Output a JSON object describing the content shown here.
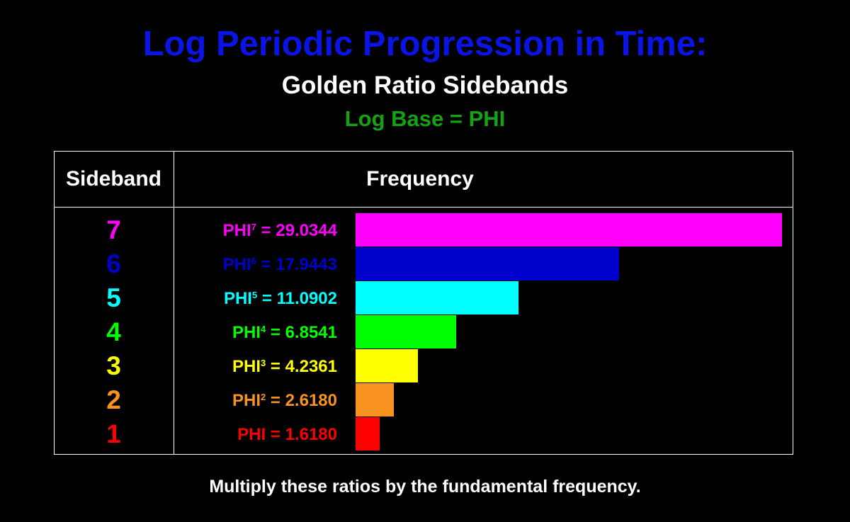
{
  "header": {
    "title": "Log Periodic Progression in Time:",
    "subtitle": "Golden Ratio Sidebands",
    "subsubtitle": "Log Base = PHI"
  },
  "colors": {
    "background": "#000000",
    "title": "#0a14e6",
    "subtitle": "#ffffff",
    "subsubtitle": "#13a313",
    "grid": "#ffffff"
  },
  "table": {
    "col1_header": "Sideband",
    "col2_header": "Frequency"
  },
  "rows": [
    {
      "sideband": "7",
      "base": "PHI",
      "exp": "7",
      "rest": " = 29.0344",
      "color": "#ff00ff"
    },
    {
      "sideband": "6",
      "base": "PHI",
      "exp": "6",
      "rest": " = 17.9443",
      "color": "#0000cc"
    },
    {
      "sideband": "5",
      "base": "PHI",
      "exp": "5",
      "rest": " = 11.0902",
      "color": "#00ffff"
    },
    {
      "sideband": "4",
      "base": "PHI",
      "exp": "4",
      "rest": " = 6.8541",
      "color": "#00ff00"
    },
    {
      "sideband": "3",
      "base": "PHI",
      "exp": "3",
      "rest": " = 4.2361",
      "color": "#ffff00"
    },
    {
      "sideband": "2",
      "base": "PHI",
      "exp": "2",
      "rest": " = 2.6180",
      "color": "#f7931e"
    },
    {
      "sideband": "1",
      "base": "PHI",
      "exp": "",
      "rest": " = 1.6180",
      "color": "#ff0000"
    }
  ],
  "chart_data": {
    "type": "bar",
    "orientation": "horizontal",
    "title": "Log Periodic Progression in Time:",
    "subtitle": "Golden Ratio Sidebands",
    "categories": [
      "7",
      "6",
      "5",
      "4",
      "3",
      "2",
      "1"
    ],
    "values": [
      29.0344,
      17.9443,
      11.0902,
      6.8541,
      4.2361,
      2.618,
      1.618
    ],
    "colors": [
      "#ff00ff",
      "#0000cc",
      "#00ffff",
      "#00ff00",
      "#ffff00",
      "#f7931e",
      "#ff0000"
    ],
    "xlim": [
      0,
      29.0344
    ],
    "grid": false,
    "legend": "none"
  },
  "footer": {
    "note": "Multiply these ratios by the fundamental frequency."
  }
}
